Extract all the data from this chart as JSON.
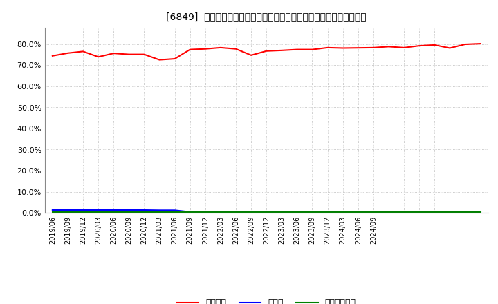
{
  "title": "[6849]  自己資本、のれん、繰延税金資産の総資産に対する比率の推移",
  "series_order": [
    "自己資本",
    "のれん",
    "繰延税金資産"
  ],
  "series": {
    "自己資本": {
      "color": "#ff0000",
      "values": [
        0.745,
        0.758,
        0.766,
        0.74,
        0.757,
        0.752,
        0.752,
        0.726,
        0.731,
        0.775,
        0.778,
        0.784,
        0.778,
        0.748,
        0.768,
        0.771,
        0.775,
        0.775,
        0.784,
        0.782,
        0.783,
        0.784,
        0.789,
        0.784,
        0.793,
        0.797,
        0.782,
        0.8,
        0.803
      ]
    },
    "のれん": {
      "color": "#0000ff",
      "values": [
        0.013,
        0.013,
        0.013,
        0.013,
        0.013,
        0.013,
        0.013,
        0.012,
        0.012,
        0.004,
        0.004,
        0.004,
        0.004,
        0.004,
        0.004,
        0.004,
        0.004,
        0.004,
        0.004,
        0.004,
        0.004,
        0.004,
        0.004,
        0.004,
        0.004,
        0.004,
        0.005,
        0.005,
        0.005
      ]
    },
    "繰延税金資産": {
      "color": "#008000",
      "values": [
        0.003,
        0.003,
        0.003,
        0.003,
        0.003,
        0.003,
        0.003,
        0.003,
        0.003,
        0.003,
        0.003,
        0.003,
        0.003,
        0.003,
        0.003,
        0.003,
        0.003,
        0.003,
        0.003,
        0.003,
        0.003,
        0.003,
        0.003,
        0.003,
        0.003,
        0.003,
        0.003,
        0.003,
        0.003
      ]
    }
  },
  "x_labels": [
    "2019/06",
    "2019/09",
    "2019/12",
    "2020/03",
    "2020/06",
    "2020/09",
    "2020/12",
    "2021/03",
    "2021/06",
    "2021/09",
    "2021/12",
    "2022/03",
    "2022/06",
    "2022/09",
    "2022/12",
    "2023/03",
    "2023/06",
    "2023/09",
    "2023/12",
    "2024/03",
    "2024/06",
    "2024/09",
    "",
    "",
    "",
    "",
    "",
    "",
    ""
  ],
  "ylim": [
    0.0,
    0.88
  ],
  "yticks": [
    0.0,
    0.1,
    0.2,
    0.3,
    0.4,
    0.5,
    0.6,
    0.7,
    0.8
  ],
  "ytick_labels": [
    "0.0%",
    "10.0%",
    "20.0%",
    "30.0%",
    "40.0%",
    "50.0%",
    "60.0%",
    "70.0%",
    "80.0%"
  ],
  "bg_color": "#ffffff",
  "grid_color": "#aaaaaa",
  "line_width": 1.5,
  "title_prefix": "[6849]  "
}
